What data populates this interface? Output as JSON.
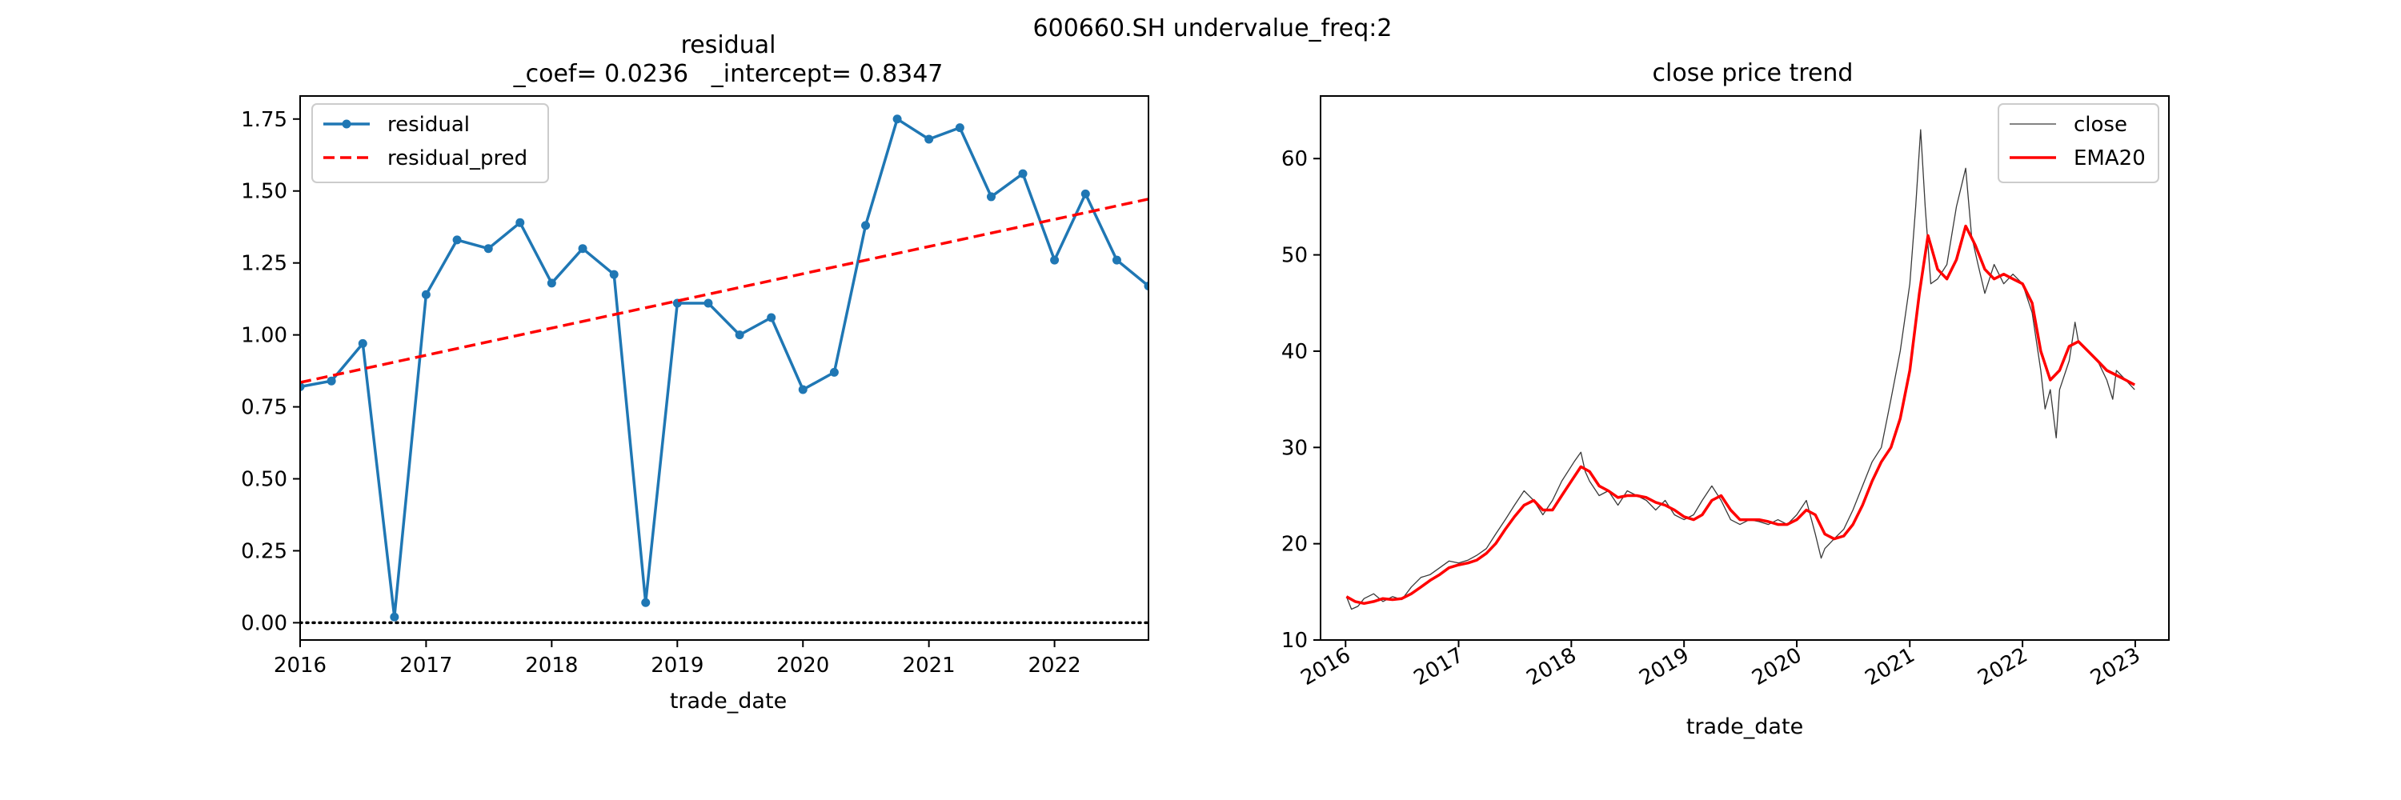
{
  "figure": {
    "suptitle": "600660.SH undervalue_freq:2"
  },
  "chart_data": [
    {
      "type": "line",
      "title_line1": "residual",
      "title_line2": "_coef= 0.0236   _intercept= 0.8347",
      "xlabel": "trade_date",
      "ylabel": "",
      "x_axis": "date",
      "xlim": [
        "2016-01-01",
        "2022-10-01"
      ],
      "ylim": [
        -0.06,
        1.83
      ],
      "x_ticks": [
        "2016",
        "2017",
        "2018",
        "2019",
        "2020",
        "2021",
        "2022"
      ],
      "y_ticks": [
        "0.00",
        "0.25",
        "0.50",
        "0.75",
        "1.00",
        "1.25",
        "1.50",
        "1.75"
      ],
      "grid": false,
      "legend": {
        "position": "upper-left",
        "entries": [
          "residual",
          "residual_pred"
        ]
      },
      "series": [
        {
          "name": "residual",
          "color": "#1f77b4",
          "style": "solid-with-markers",
          "x": [
            "2016-01-01",
            "2016-04-01",
            "2016-07-01",
            "2016-10-01",
            "2017-01-01",
            "2017-04-01",
            "2017-07-01",
            "2017-10-01",
            "2018-01-01",
            "2018-04-01",
            "2018-07-01",
            "2018-10-01",
            "2019-01-01",
            "2019-04-01",
            "2019-07-01",
            "2019-10-01",
            "2020-01-01",
            "2020-04-01",
            "2020-07-01",
            "2020-10-01",
            "2021-01-01",
            "2021-04-01",
            "2021-07-01",
            "2021-10-01",
            "2022-01-01",
            "2022-04-01",
            "2022-07-01",
            "2022-10-01"
          ],
          "values": [
            0.82,
            0.84,
            0.97,
            0.02,
            1.14,
            1.33,
            1.3,
            1.39,
            1.18,
            1.3,
            1.21,
            0.07,
            1.11,
            1.11,
            1.0,
            1.06,
            0.81,
            0.87,
            1.38,
            1.75,
            1.68,
            1.72,
            1.48,
            1.56,
            1.26,
            1.49,
            1.26,
            1.17
          ]
        },
        {
          "name": "residual_pred",
          "color": "#ff0000",
          "style": "dashed",
          "x": [
            "2016-01-01",
            "2022-10-01"
          ],
          "values": [
            0.8347,
            1.4719
          ]
        }
      ],
      "reference_line": {
        "y": 0.0,
        "color": "#000000",
        "style": "dotted"
      }
    },
    {
      "type": "line",
      "title": "close price trend",
      "xlabel": "trade_date",
      "ylabel": "",
      "x_axis": "date",
      "xlim": [
        "2015-10-12",
        "2023-04-20"
      ],
      "ylim": [
        10,
        66.5
      ],
      "x_ticks": [
        "2016",
        "2017",
        "2018",
        "2019",
        "2020",
        "2021",
        "2022",
        "2023"
      ],
      "y_ticks": [
        "10",
        "20",
        "30",
        "40",
        "50",
        "60"
      ],
      "x_tick_rotation": 30,
      "grid": false,
      "legend": {
        "position": "upper-right",
        "entries": [
          "close",
          "EMA20"
        ]
      },
      "series": [
        {
          "name": "close",
          "color": "#3a3a3a",
          "style": "thin-solid",
          "x": [
            "2016-01-04",
            "2016-01-20",
            "2016-02-10",
            "2016-03-01",
            "2016-04-01",
            "2016-05-01",
            "2016-06-01",
            "2016-07-01",
            "2016-08-01",
            "2016-09-01",
            "2016-10-01",
            "2016-11-01",
            "2016-12-01",
            "2017-01-01",
            "2017-02-01",
            "2017-03-01",
            "2017-04-01",
            "2017-05-01",
            "2017-06-01",
            "2017-07-01",
            "2017-08-01",
            "2017-09-01",
            "2017-10-01",
            "2017-11-01",
            "2017-12-01",
            "2018-01-10",
            "2018-02-01",
            "2018-02-15",
            "2018-03-01",
            "2018-04-01",
            "2018-05-01",
            "2018-06-01",
            "2018-07-01",
            "2018-08-01",
            "2018-09-01",
            "2018-10-01",
            "2018-11-01",
            "2018-12-01",
            "2019-01-01",
            "2019-02-01",
            "2019-03-01",
            "2019-04-01",
            "2019-05-01",
            "2019-06-01",
            "2019-07-01",
            "2019-08-01",
            "2019-09-01",
            "2019-10-01",
            "2019-11-01",
            "2019-12-01",
            "2020-01-01",
            "2020-02-01",
            "2020-03-01",
            "2020-03-20",
            "2020-04-01",
            "2020-05-01",
            "2020-06-01",
            "2020-07-01",
            "2020-08-01",
            "2020-09-01",
            "2020-10-01",
            "2020-11-01",
            "2020-12-01",
            "2021-01-01",
            "2021-01-20",
            "2021-02-05",
            "2021-02-20",
            "2021-03-10",
            "2021-04-01",
            "2021-05-01",
            "2021-06-01",
            "2021-07-01",
            "2021-07-20",
            "2021-08-10",
            "2021-09-01",
            "2021-10-01",
            "2021-11-01",
            "2021-12-01",
            "2022-01-01",
            "2022-02-01",
            "2022-03-01",
            "2022-03-15",
            "2022-04-01",
            "2022-04-20",
            "2022-05-01",
            "2022-06-01",
            "2022-06-20",
            "2022-07-01",
            "2022-08-01",
            "2022-09-01",
            "2022-10-01",
            "2022-10-20",
            "2022-11-01",
            "2022-12-01",
            "2022-12-30"
          ],
          "values": [
            14.5,
            13.2,
            13.5,
            14.3,
            14.8,
            14.0,
            14.5,
            14.2,
            15.5,
            16.5,
            16.8,
            17.5,
            18.2,
            18.0,
            18.3,
            18.8,
            19.5,
            21.0,
            22.5,
            24.0,
            25.5,
            24.5,
            23.0,
            24.5,
            26.5,
            28.5,
            29.5,
            27.5,
            26.5,
            25.0,
            25.5,
            24.0,
            25.5,
            25.0,
            24.5,
            23.5,
            24.5,
            23.0,
            22.5,
            23.0,
            24.5,
            26.0,
            24.5,
            22.5,
            22.0,
            22.5,
            22.3,
            22.0,
            22.5,
            22.0,
            23.0,
            24.5,
            21.0,
            18.5,
            19.5,
            20.5,
            21.5,
            23.5,
            26.0,
            28.5,
            30.0,
            35.0,
            40.0,
            47.0,
            55.0,
            63.0,
            55.0,
            47.0,
            47.5,
            49.0,
            55.0,
            59.0,
            52.0,
            49.0,
            46.0,
            49.0,
            47.0,
            48.0,
            47.0,
            44.0,
            38.0,
            34.0,
            36.0,
            31.0,
            36.0,
            39.0,
            43.0,
            41.0,
            40.0,
            39.0,
            37.0,
            35.0,
            38.0,
            37.0,
            36.0
          ]
        },
        {
          "name": "EMA20",
          "color": "#ff0000",
          "style": "solid",
          "x": [
            "2016-01-04",
            "2016-02-01",
            "2016-03-01",
            "2016-04-01",
            "2016-05-01",
            "2016-06-01",
            "2016-07-01",
            "2016-08-01",
            "2016-09-01",
            "2016-10-01",
            "2016-11-01",
            "2016-12-01",
            "2017-01-01",
            "2017-02-01",
            "2017-03-01",
            "2017-04-01",
            "2017-05-01",
            "2017-06-01",
            "2017-07-01",
            "2017-08-01",
            "2017-09-01",
            "2017-10-01",
            "2017-11-01",
            "2017-12-01",
            "2018-01-01",
            "2018-02-01",
            "2018-03-01",
            "2018-04-01",
            "2018-05-01",
            "2018-06-01",
            "2018-07-01",
            "2018-08-01",
            "2018-09-01",
            "2018-10-01",
            "2018-11-01",
            "2018-12-01",
            "2019-01-01",
            "2019-02-01",
            "2019-03-01",
            "2019-04-01",
            "2019-05-01",
            "2019-06-01",
            "2019-07-01",
            "2019-08-01",
            "2019-09-01",
            "2019-10-01",
            "2019-11-01",
            "2019-12-01",
            "2020-01-01",
            "2020-02-01",
            "2020-03-01",
            "2020-04-01",
            "2020-05-01",
            "2020-06-01",
            "2020-07-01",
            "2020-08-01",
            "2020-09-01",
            "2020-10-01",
            "2020-11-01",
            "2020-12-01",
            "2021-01-01",
            "2021-02-01",
            "2021-03-01",
            "2021-04-01",
            "2021-05-01",
            "2021-06-01",
            "2021-07-01",
            "2021-08-01",
            "2021-09-01",
            "2021-10-01",
            "2021-11-01",
            "2021-12-01",
            "2022-01-01",
            "2022-02-01",
            "2022-03-01",
            "2022-04-01",
            "2022-05-01",
            "2022-06-01",
            "2022-07-01",
            "2022-08-01",
            "2022-09-01",
            "2022-10-01",
            "2022-11-01",
            "2022-12-01",
            "2022-12-30"
          ],
          "values": [
            14.5,
            14.0,
            13.8,
            14.0,
            14.3,
            14.2,
            14.3,
            14.8,
            15.5,
            16.2,
            16.8,
            17.5,
            17.8,
            18.0,
            18.3,
            19.0,
            20.0,
            21.5,
            22.8,
            24.0,
            24.5,
            23.5,
            23.5,
            25.0,
            26.5,
            28.0,
            27.5,
            26.0,
            25.5,
            24.8,
            25.0,
            25.0,
            24.8,
            24.3,
            24.0,
            23.5,
            22.8,
            22.5,
            23.0,
            24.5,
            25.0,
            23.5,
            22.5,
            22.5,
            22.5,
            22.3,
            22.0,
            22.0,
            22.5,
            23.5,
            23.0,
            21.0,
            20.5,
            20.8,
            22.0,
            24.0,
            26.5,
            28.5,
            30.0,
            33.0,
            38.0,
            46.0,
            52.0,
            48.5,
            47.5,
            49.5,
            53.0,
            51.0,
            48.5,
            47.5,
            48.0,
            47.5,
            47.0,
            45.0,
            40.0,
            37.0,
            38.0,
            40.5,
            41.0,
            40.0,
            39.0,
            38.0,
            37.5,
            37.0,
            36.5
          ]
        }
      ]
    }
  ]
}
